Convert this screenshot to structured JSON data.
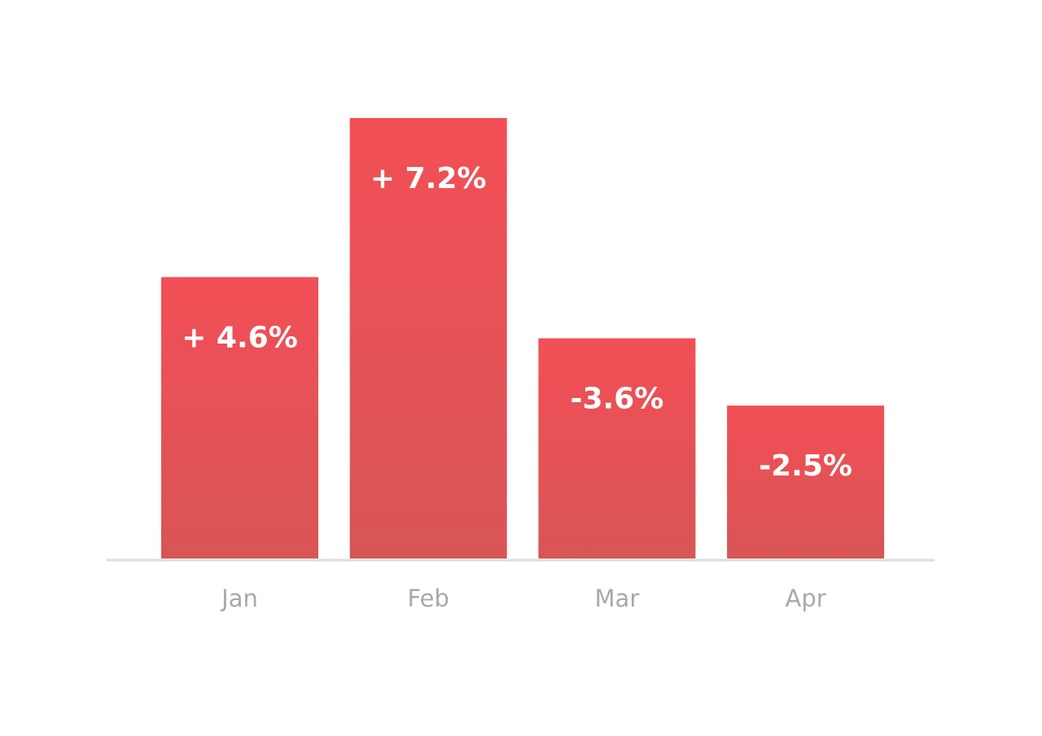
{
  "chart_data": {
    "type": "bar",
    "categories": [
      "Jan",
      "Feb",
      "Mar",
      "Apr"
    ],
    "values": [
      4.6,
      7.2,
      -3.6,
      -2.5
    ],
    "value_labels": [
      "+ 4.6%",
      "+ 7.2%",
      "-3.6%",
      "-2.5%"
    ],
    "color": "#f24f56"
  }
}
